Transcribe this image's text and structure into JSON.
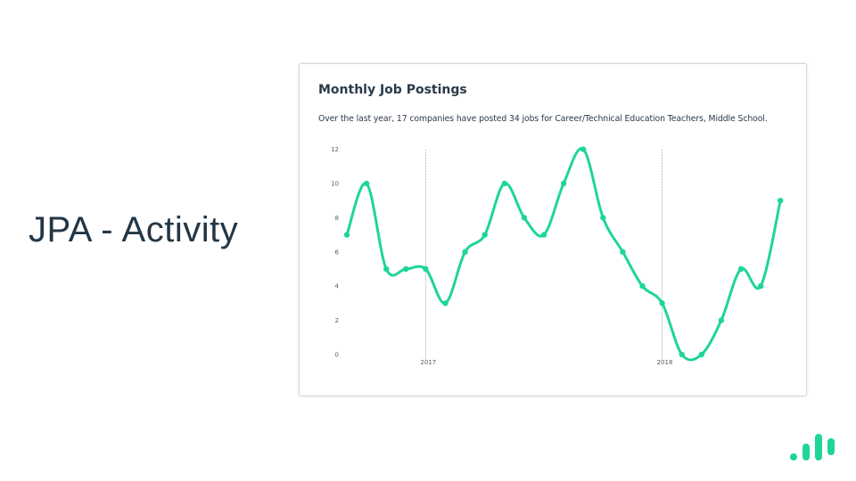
{
  "slide": {
    "title": "JPA - Activity"
  },
  "card": {
    "title": "Monthly Job Postings",
    "subtitle": "Over the last year, 17 companies have posted 34 jobs for Career/Technical Education Teachers, Middle School."
  },
  "colors": {
    "line": "#1ed695",
    "title_text": "#233645",
    "card_text": "#2b3a4a",
    "logo": "#1ed695",
    "divider": "#9aa0a6"
  },
  "logo": {
    "icon": "bar-chart-logo-icon"
  },
  "chart_data": {
    "type": "line",
    "title": "Monthly Job Postings",
    "ylim": [
      0,
      12
    ],
    "yticks": [
      "0",
      "2",
      "4",
      "6",
      "8",
      "10",
      "12"
    ],
    "xtick_labels": [
      "2017",
      "2018"
    ],
    "xtick_positions": [
      4,
      16
    ],
    "grid": false,
    "legend": "none",
    "series": [
      {
        "values": [
          7,
          10,
          5,
          5,
          5,
          3,
          6,
          7,
          10,
          8,
          7,
          10,
          12,
          8,
          6,
          4,
          3,
          0,
          0,
          2,
          5,
          4,
          9
        ]
      }
    ]
  }
}
